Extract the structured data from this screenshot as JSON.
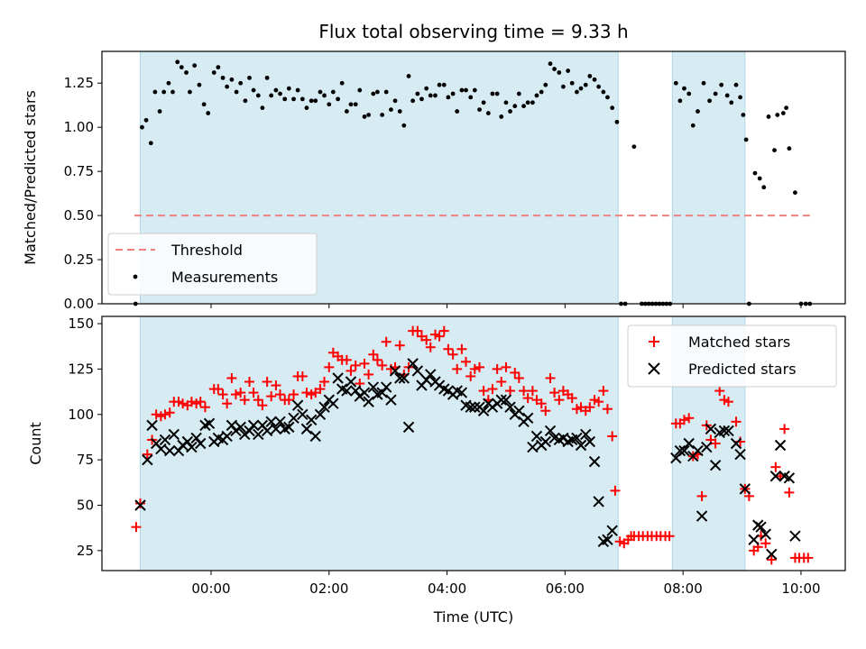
{
  "title": "Flux total observing time = 9.33 h",
  "xlabel": "Time (UTC)",
  "x_ticks": [
    {
      "h": 0,
      "label": "00:00"
    },
    {
      "h": 2,
      "label": "02:00"
    },
    {
      "h": 4,
      "label": "04:00"
    },
    {
      "h": 6,
      "label": "06:00"
    },
    {
      "h": 8,
      "label": "08:00"
    },
    {
      "h": 10,
      "label": "10:00"
    }
  ],
  "x_range": [
    -1.85,
    10.75
  ],
  "shaded_intervals": [
    [
      -1.2,
      6.9
    ],
    [
      7.82,
      9.05
    ]
  ],
  "top_panel": {
    "ylabel": "Matched/Predicted stars",
    "ylim": [
      0,
      1.43
    ],
    "y_ticks": [
      0,
      0.25,
      0.5,
      0.75,
      1.0,
      1.25
    ],
    "y_tick_labels": [
      "0.00",
      "0.25",
      "0.50",
      "0.75",
      "1.00",
      "1.25"
    ],
    "threshold": {
      "label": "Threshold",
      "value": 0.5,
      "x_range": [
        -1.3,
        10.15
      ],
      "color": "#f08080"
    },
    "measurements_label": "Measurements",
    "legend_loc": "lower-left",
    "zero_points": [
      -1.28,
      6.95,
      7.02,
      7.3,
      7.36,
      7.42,
      7.48,
      7.54,
      7.6,
      7.66,
      7.72,
      7.78,
      9.12,
      10.0,
      10.08,
      10.15
    ],
    "measurements": [
      [
        -1.17,
        1.0
      ],
      [
        -1.1,
        1.04
      ],
      [
        -1.02,
        0.91
      ],
      [
        -0.95,
        1.2
      ],
      [
        -0.87,
        1.09
      ],
      [
        -0.8,
        1.2
      ],
      [
        -0.72,
        1.25
      ],
      [
        -0.65,
        1.2
      ],
      [
        -0.57,
        1.37
      ],
      [
        -0.5,
        1.34
      ],
      [
        -0.42,
        1.31
      ],
      [
        -0.36,
        1.2
      ],
      [
        -0.28,
        1.35
      ],
      [
        -0.2,
        1.24
      ],
      [
        -0.12,
        1.13
      ],
      [
        -0.05,
        1.08
      ],
      [
        0.05,
        1.31
      ],
      [
        0.12,
        1.34
      ],
      [
        0.2,
        1.28
      ],
      [
        0.27,
        1.23
      ],
      [
        0.35,
        1.27
      ],
      [
        0.43,
        1.2
      ],
      [
        0.5,
        1.25
      ],
      [
        0.58,
        1.15
      ],
      [
        0.65,
        1.28
      ],
      [
        0.72,
        1.21
      ],
      [
        0.8,
        1.18
      ],
      [
        0.87,
        1.11
      ],
      [
        0.95,
        1.28
      ],
      [
        1.02,
        1.18
      ],
      [
        1.1,
        1.21
      ],
      [
        1.17,
        1.19
      ],
      [
        1.25,
        1.16
      ],
      [
        1.32,
        1.22
      ],
      [
        1.4,
        1.16
      ],
      [
        1.47,
        1.21
      ],
      [
        1.55,
        1.16
      ],
      [
        1.62,
        1.11
      ],
      [
        1.7,
        1.15
      ],
      [
        1.77,
        1.15
      ],
      [
        1.85,
        1.2
      ],
      [
        1.92,
        1.18
      ],
      [
        2.0,
        1.13
      ],
      [
        2.07,
        1.2
      ],
      [
        2.15,
        1.16
      ],
      [
        2.22,
        1.25
      ],
      [
        2.3,
        1.09
      ],
      [
        2.37,
        1.13
      ],
      [
        2.45,
        1.13
      ],
      [
        2.52,
        1.21
      ],
      [
        2.6,
        1.06
      ],
      [
        2.67,
        1.07
      ],
      [
        2.75,
        1.19
      ],
      [
        2.82,
        1.2
      ],
      [
        2.9,
        1.07
      ],
      [
        2.97,
        1.2
      ],
      [
        3.05,
        1.1
      ],
      [
        3.12,
        1.15
      ],
      [
        3.2,
        1.09
      ],
      [
        3.27,
        1.01
      ],
      [
        3.35,
        1.29
      ],
      [
        3.42,
        1.15
      ],
      [
        3.5,
        1.19
      ],
      [
        3.57,
        1.16
      ],
      [
        3.65,
        1.22
      ],
      [
        3.72,
        1.18
      ],
      [
        3.8,
        1.18
      ],
      [
        3.87,
        1.24
      ],
      [
        3.95,
        1.24
      ],
      [
        4.02,
        1.17
      ],
      [
        4.1,
        1.19
      ],
      [
        4.17,
        1.09
      ],
      [
        4.25,
        1.21
      ],
      [
        4.32,
        1.21
      ],
      [
        4.4,
        1.17
      ],
      [
        4.47,
        1.21
      ],
      [
        4.55,
        1.1
      ],
      [
        4.62,
        1.14
      ],
      [
        4.7,
        1.08
      ],
      [
        4.77,
        1.19
      ],
      [
        4.85,
        1.19
      ],
      [
        4.92,
        1.06
      ],
      [
        5.0,
        1.14
      ],
      [
        5.07,
        1.09
      ],
      [
        5.15,
        1.12
      ],
      [
        5.22,
        1.19
      ],
      [
        5.3,
        1.12
      ],
      [
        5.37,
        1.14
      ],
      [
        5.45,
        1.14
      ],
      [
        5.52,
        1.18
      ],
      [
        5.6,
        1.2
      ],
      [
        5.67,
        1.24
      ],
      [
        5.75,
        1.36
      ],
      [
        5.82,
        1.33
      ],
      [
        5.9,
        1.31
      ],
      [
        5.97,
        1.23
      ],
      [
        6.05,
        1.32
      ],
      [
        6.12,
        1.25
      ],
      [
        6.2,
        1.2
      ],
      [
        6.27,
        1.22
      ],
      [
        6.35,
        1.24
      ],
      [
        6.42,
        1.29
      ],
      [
        6.5,
        1.27
      ],
      [
        6.57,
        1.23
      ],
      [
        6.65,
        1.2
      ],
      [
        6.72,
        1.17
      ],
      [
        6.8,
        1.11
      ],
      [
        6.88,
        1.03
      ],
      [
        7.17,
        0.89
      ],
      [
        7.88,
        1.25
      ],
      [
        7.95,
        1.15
      ],
      [
        8.02,
        1.22
      ],
      [
        8.1,
        1.19
      ],
      [
        8.17,
        1.01
      ],
      [
        8.25,
        1.09
      ],
      [
        8.35,
        1.25
      ],
      [
        8.45,
        1.15
      ],
      [
        8.55,
        1.19
      ],
      [
        8.65,
        1.24
      ],
      [
        8.75,
        1.18
      ],
      [
        8.82,
        1.14
      ],
      [
        8.9,
        1.24
      ],
      [
        8.97,
        1.17
      ],
      [
        9.02,
        1.07
      ],
      [
        9.07,
        0.93
      ],
      [
        9.22,
        0.74
      ],
      [
        9.3,
        0.71
      ],
      [
        9.37,
        0.66
      ],
      [
        9.45,
        1.06
      ],
      [
        9.55,
        0.87
      ],
      [
        9.6,
        1.07
      ],
      [
        9.7,
        1.08
      ],
      [
        9.75,
        1.11
      ],
      [
        9.8,
        0.88
      ],
      [
        9.9,
        0.63
      ]
    ]
  },
  "bottom_panel": {
    "ylabel": "Count",
    "ylim": [
      14,
      154
    ],
    "y_ticks": [
      25,
      50,
      75,
      100,
      125,
      150
    ],
    "y_tick_labels": [
      "25",
      "50",
      "75",
      "100",
      "125",
      "150"
    ],
    "legend_loc": "upper-right",
    "matched_label": "Matched stars",
    "predicted_label": "Predicted stars",
    "matched_color": "#ff0000",
    "predicted_color": "#000000",
    "matched": [
      [
        -1.27,
        38
      ],
      [
        -1.2,
        51
      ],
      [
        -1.08,
        78
      ],
      [
        -1.0,
        86
      ],
      [
        -0.93,
        100
      ],
      [
        -0.85,
        99
      ],
      [
        -0.78,
        100
      ],
      [
        -0.7,
        101
      ],
      [
        -0.63,
        107
      ],
      [
        -0.55,
        107
      ],
      [
        -0.48,
        106
      ],
      [
        -0.4,
        105
      ],
      [
        -0.33,
        107
      ],
      [
        -0.25,
        106
      ],
      [
        -0.18,
        107
      ],
      [
        -0.1,
        104
      ],
      [
        0.05,
        114
      ],
      [
        0.12,
        114
      ],
      [
        0.2,
        111
      ],
      [
        0.27,
        106
      ],
      [
        0.35,
        120
      ],
      [
        0.42,
        111
      ],
      [
        0.5,
        112
      ],
      [
        0.57,
        108
      ],
      [
        0.65,
        118
      ],
      [
        0.72,
        112
      ],
      [
        0.8,
        108
      ],
      [
        0.87,
        105
      ],
      [
        0.95,
        118
      ],
      [
        1.02,
        110
      ],
      [
        1.1,
        116
      ],
      [
        1.17,
        111
      ],
      [
        1.25,
        108
      ],
      [
        1.32,
        108
      ],
      [
        1.4,
        111
      ],
      [
        1.47,
        121
      ],
      [
        1.55,
        121
      ],
      [
        1.62,
        112
      ],
      [
        1.7,
        111
      ],
      [
        1.77,
        112
      ],
      [
        1.85,
        114
      ],
      [
        1.92,
        118
      ],
      [
        2.0,
        126
      ],
      [
        2.07,
        134
      ],
      [
        2.15,
        132
      ],
      [
        2.22,
        130
      ],
      [
        2.3,
        130
      ],
      [
        2.37,
        124
      ],
      [
        2.45,
        127
      ],
      [
        2.52,
        117
      ],
      [
        2.6,
        128
      ],
      [
        2.67,
        122
      ],
      [
        2.75,
        133
      ],
      [
        2.82,
        130
      ],
      [
        2.9,
        127
      ],
      [
        2.97,
        140
      ],
      [
        3.05,
        125
      ],
      [
        3.12,
        126
      ],
      [
        3.2,
        138
      ],
      [
        3.27,
        122
      ],
      [
        3.35,
        126
      ],
      [
        3.42,
        146
      ],
      [
        3.5,
        146
      ],
      [
        3.57,
        143
      ],
      [
        3.65,
        141
      ],
      [
        3.72,
        137
      ],
      [
        3.8,
        144
      ],
      [
        3.87,
        143
      ],
      [
        3.95,
        146
      ],
      [
        4.02,
        136
      ],
      [
        4.1,
        133
      ],
      [
        4.17,
        125
      ],
      [
        4.25,
        136
      ],
      [
        4.32,
        129
      ],
      [
        4.4,
        121
      ],
      [
        4.47,
        125
      ],
      [
        4.55,
        126
      ],
      [
        4.62,
        113
      ],
      [
        4.7,
        108
      ],
      [
        4.77,
        114
      ],
      [
        4.85,
        125
      ],
      [
        4.92,
        118
      ],
      [
        5.0,
        126
      ],
      [
        5.07,
        113
      ],
      [
        5.15,
        123
      ],
      [
        5.22,
        120
      ],
      [
        5.3,
        113
      ],
      [
        5.37,
        109
      ],
      [
        5.45,
        113
      ],
      [
        5.52,
        108
      ],
      [
        5.6,
        106
      ],
      [
        5.67,
        102
      ],
      [
        5.75,
        120
      ],
      [
        5.82,
        112
      ],
      [
        5.9,
        108
      ],
      [
        5.97,
        113
      ],
      [
        6.05,
        111
      ],
      [
        6.12,
        109
      ],
      [
        6.2,
        103
      ],
      [
        6.27,
        104
      ],
      [
        6.35,
        102
      ],
      [
        6.42,
        104
      ],
      [
        6.5,
        108
      ],
      [
        6.57,
        107
      ],
      [
        6.65,
        113
      ],
      [
        6.72,
        103
      ],
      [
        6.8,
        88
      ],
      [
        6.85,
        58
      ],
      [
        6.93,
        30
      ],
      [
        7.0,
        29
      ],
      [
        7.07,
        31
      ],
      [
        7.12,
        33
      ],
      [
        7.17,
        33
      ],
      [
        7.25,
        33
      ],
      [
        7.32,
        33
      ],
      [
        7.4,
        33
      ],
      [
        7.47,
        33
      ],
      [
        7.55,
        33
      ],
      [
        7.62,
        33
      ],
      [
        7.7,
        33
      ],
      [
        7.77,
        33
      ],
      [
        7.88,
        95
      ],
      [
        7.95,
        95
      ],
      [
        8.02,
        97
      ],
      [
        8.1,
        98
      ],
      [
        8.17,
        77
      ],
      [
        8.25,
        78
      ],
      [
        8.32,
        55
      ],
      [
        8.4,
        94
      ],
      [
        8.47,
        86
      ],
      [
        8.55,
        84
      ],
      [
        8.62,
        113
      ],
      [
        8.7,
        108
      ],
      [
        8.77,
        107
      ],
      [
        8.9,
        96
      ],
      [
        8.97,
        85
      ],
      [
        9.05,
        59
      ],
      [
        9.12,
        55
      ],
      [
        9.2,
        25
      ],
      [
        9.27,
        27
      ],
      [
        9.32,
        33
      ],
      [
        9.4,
        29
      ],
      [
        9.5,
        20
      ],
      [
        9.57,
        71
      ],
      [
        9.65,
        66
      ],
      [
        9.72,
        92
      ],
      [
        9.8,
        57
      ],
      [
        9.9,
        21
      ],
      [
        9.97,
        21
      ],
      [
        10.05,
        21
      ],
      [
        10.12,
        21
      ]
    ],
    "predicted": [
      [
        -1.2,
        50
      ],
      [
        -1.08,
        75
      ],
      [
        -1.0,
        94
      ],
      [
        -0.93,
        84
      ],
      [
        -0.85,
        81
      ],
      [
        -0.78,
        86
      ],
      [
        -0.7,
        80
      ],
      [
        -0.63,
        89
      ],
      [
        -0.55,
        80
      ],
      [
        -0.48,
        83
      ],
      [
        -0.4,
        85
      ],
      [
        -0.33,
        82
      ],
      [
        -0.25,
        87
      ],
      [
        -0.18,
        84
      ],
      [
        -0.1,
        94
      ],
      [
        -0.03,
        95
      ],
      [
        0.05,
        85
      ],
      [
        0.12,
        87
      ],
      [
        0.2,
        86
      ],
      [
        0.27,
        88
      ],
      [
        0.35,
        94
      ],
      [
        0.42,
        91
      ],
      [
        0.5,
        93
      ],
      [
        0.57,
        89
      ],
      [
        0.65,
        91
      ],
      [
        0.72,
        94
      ],
      [
        0.8,
        89
      ],
      [
        0.87,
        94
      ],
      [
        0.95,
        91
      ],
      [
        1.02,
        96
      ],
      [
        1.1,
        92
      ],
      [
        1.17,
        96
      ],
      [
        1.25,
        92
      ],
      [
        1.32,
        93
      ],
      [
        1.4,
        98
      ],
      [
        1.47,
        105
      ],
      [
        1.55,
        100
      ],
      [
        1.62,
        92
      ],
      [
        1.7,
        97
      ],
      [
        1.77,
        88
      ],
      [
        1.85,
        100
      ],
      [
        1.92,
        104
      ],
      [
        2.0,
        108
      ],
      [
        2.07,
        106
      ],
      [
        2.15,
        120
      ],
      [
        2.22,
        114
      ],
      [
        2.3,
        113
      ],
      [
        2.37,
        118
      ],
      [
        2.45,
        113
      ],
      [
        2.52,
        110
      ],
      [
        2.6,
        112
      ],
      [
        2.67,
        107
      ],
      [
        2.75,
        115
      ],
      [
        2.82,
        111
      ],
      [
        2.9,
        112
      ],
      [
        2.97,
        115
      ],
      [
        3.05,
        108
      ],
      [
        3.12,
        124
      ],
      [
        3.2,
        120
      ],
      [
        3.27,
        120
      ],
      [
        3.35,
        93
      ],
      [
        3.42,
        128
      ],
      [
        3.5,
        124
      ],
      [
        3.57,
        116
      ],
      [
        3.65,
        119
      ],
      [
        3.72,
        122
      ],
      [
        3.8,
        118
      ],
      [
        3.87,
        116
      ],
      [
        3.95,
        114
      ],
      [
        4.02,
        113
      ],
      [
        4.1,
        111
      ],
      [
        4.17,
        113
      ],
      [
        4.25,
        112
      ],
      [
        4.32,
        105
      ],
      [
        4.4,
        104
      ],
      [
        4.47,
        104
      ],
      [
        4.55,
        104
      ],
      [
        4.62,
        102
      ],
      [
        4.7,
        106
      ],
      [
        4.77,
        104
      ],
      [
        4.85,
        106
      ],
      [
        4.92,
        108
      ],
      [
        5.0,
        108
      ],
      [
        5.07,
        104
      ],
      [
        5.15,
        100
      ],
      [
        5.22,
        102
      ],
      [
        5.3,
        96
      ],
      [
        5.37,
        98
      ],
      [
        5.45,
        82
      ],
      [
        5.52,
        88
      ],
      [
        5.6,
        83
      ],
      [
        5.67,
        85
      ],
      [
        5.75,
        91
      ],
      [
        5.82,
        87
      ],
      [
        5.9,
        86
      ],
      [
        5.97,
        87
      ],
      [
        6.05,
        85
      ],
      [
        6.12,
        86
      ],
      [
        6.2,
        87
      ],
      [
        6.27,
        83
      ],
      [
        6.35,
        89
      ],
      [
        6.42,
        85
      ],
      [
        6.5,
        74
      ],
      [
        6.57,
        52
      ],
      [
        6.65,
        30
      ],
      [
        6.72,
        31
      ],
      [
        6.8,
        36
      ],
      [
        7.88,
        76
      ],
      [
        7.95,
        80
      ],
      [
        8.02,
        80
      ],
      [
        8.1,
        84
      ],
      [
        8.17,
        77
      ],
      [
        8.25,
        80
      ],
      [
        8.32,
        44
      ],
      [
        8.4,
        82
      ],
      [
        8.47,
        92
      ],
      [
        8.55,
        72
      ],
      [
        8.62,
        90
      ],
      [
        8.7,
        91
      ],
      [
        8.77,
        91
      ],
      [
        8.9,
        84
      ],
      [
        8.97,
        78
      ],
      [
        9.05,
        59
      ],
      [
        9.2,
        31
      ],
      [
        9.27,
        39
      ],
      [
        9.32,
        38
      ],
      [
        9.4,
        34
      ],
      [
        9.5,
        23
      ],
      [
        9.57,
        66
      ],
      [
        9.65,
        83
      ],
      [
        9.72,
        66
      ],
      [
        9.8,
        65
      ],
      [
        9.9,
        33
      ]
    ]
  }
}
